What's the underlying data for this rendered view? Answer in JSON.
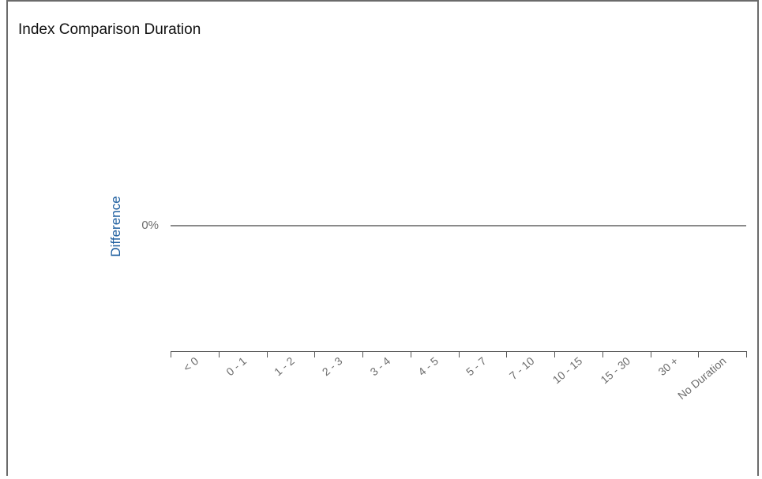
{
  "panel": {
    "title": "Index Comparison Duration"
  },
  "chart_data": {
    "type": "bar",
    "title": "Index Comparison Duration",
    "xlabel": "",
    "ylabel": "Difference",
    "categories": [
      "< 0",
      "0 - 1",
      "1 - 2",
      "2 - 3",
      "3 - 4",
      "4 - 5",
      "5 - 7",
      "7 - 10",
      "10 - 15",
      "15 - 30",
      "30 +",
      "No Duration"
    ],
    "series": [
      {
        "values": [
          0,
          0,
          0,
          0,
          0,
          0,
          0,
          0,
          0,
          0,
          0,
          0
        ]
      }
    ],
    "y_ticks": [
      "0%"
    ],
    "grid": false,
    "legend": "none",
    "colors": {
      "ylabel": "#1f5fa0",
      "tick_text": "#6d6d6d",
      "zero_line": "#444444",
      "axis": "#555555"
    }
  }
}
